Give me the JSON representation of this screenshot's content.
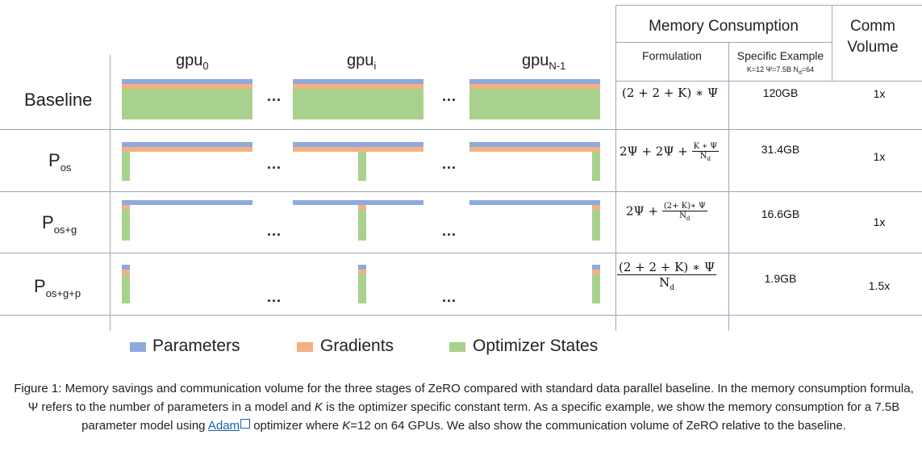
{
  "gpu_labels": {
    "gpu0": {
      "base": "gpu",
      "sub": "0"
    },
    "gpui": {
      "base": "gpu",
      "sub": "i"
    },
    "gpun": {
      "base": "gpu",
      "sub": "N-1"
    }
  },
  "ellipsis": "...",
  "rows": [
    {
      "label_base": "Baseline",
      "label_sub": "",
      "value": "120GB",
      "comm": "1x"
    },
    {
      "label_base": "P",
      "label_sub": "os",
      "value": "31.4GB",
      "comm": "1x"
    },
    {
      "label_base": "P",
      "label_sub": "os+g",
      "value": "16.6GB",
      "comm": "1x"
    },
    {
      "label_base": "P",
      "label_sub": "os+g+p",
      "value": "1.9GB",
      "comm": "1.5x"
    }
  ],
  "formulas": {
    "baseline": "(2 + 2 + K) ∗ Ψ",
    "pos_prefix": "2Ψ + 2Ψ + ",
    "pos_num": "K ∗ Ψ",
    "pos_den": "N",
    "pos_den_sub": "d",
    "posg_prefix": "2Ψ + ",
    "posg_num": "(2+ K)∗ Ψ",
    "posg_den": "N",
    "posg_den_sub": "d",
    "posgp_num": "(2 +  2 +  K)  ∗  Ψ",
    "posgp_den": "N",
    "posgp_den_sub": "d"
  },
  "header": {
    "memory": "Memory Consumption",
    "comm_line1": "Comm",
    "comm_line2": "Volume",
    "formulation": "Formulation",
    "specific": "Specific Example",
    "specific_detail": "K=12 Ψ=7.5B N",
    "specific_detail_sub": "d",
    "specific_detail_tail": "=64"
  },
  "legend": {
    "parameters": "Parameters",
    "gradients": "Gradients",
    "optimizer": "Optimizer States"
  },
  "colors": {
    "parameters": "#8eaadb",
    "gradients": "#f4b183",
    "optimizer": "#a9d18e",
    "grid": "#9aa9b8"
  },
  "caption": {
    "part1": "Figure 1: Memory savings and communication volume for the three stages of ZeRO compared with standard data parallel baseline. In the memory consumption formula, Ψ refers to the number of parameters in a model and ",
    "k": "K",
    "part2": " is the optimizer specific constant term. As a specific example, we show the memory consumption for a 7.5B parameter model using ",
    "link": "Adam",
    "part3": " optimizer where ",
    "k2": "K",
    "part4": "=12 on 64 GPUs. We also show the communication volume of ZeRO relative to the baseline."
  }
}
